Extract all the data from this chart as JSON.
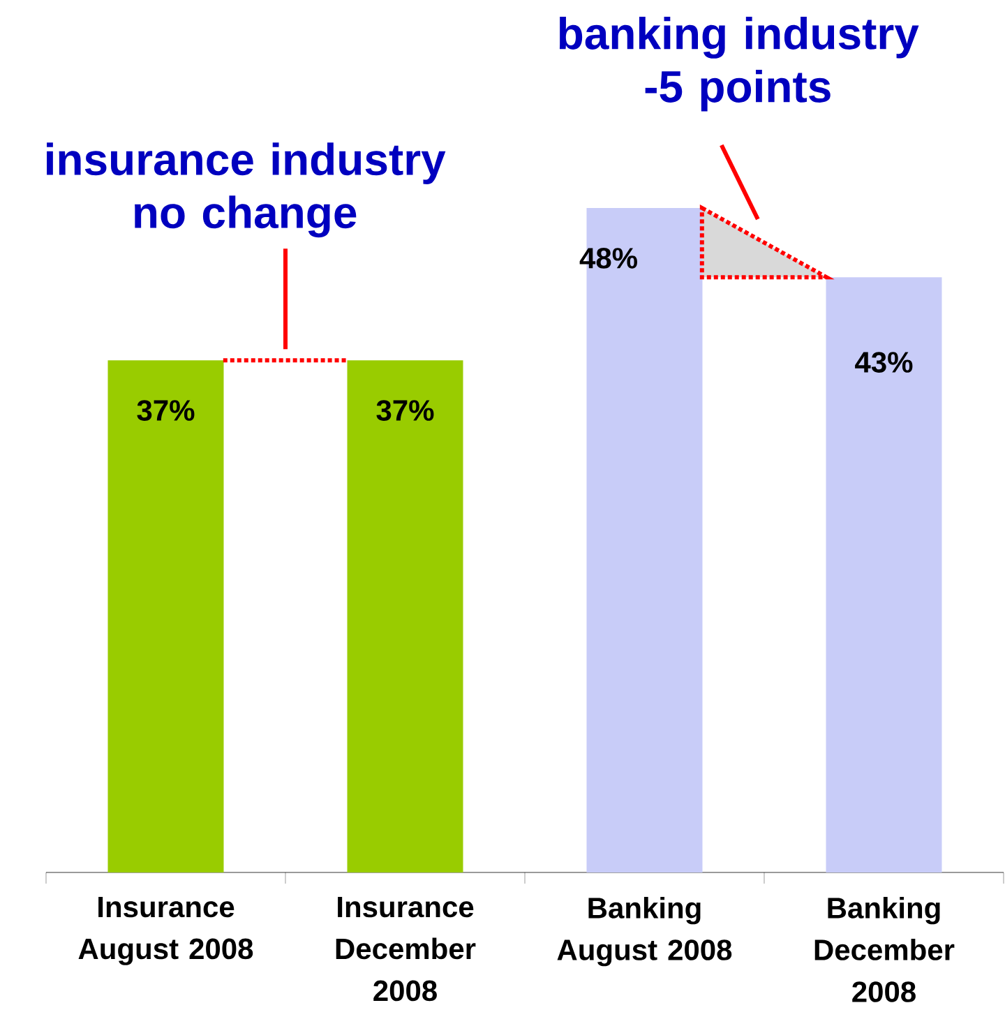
{
  "chart_data": {
    "type": "bar",
    "categories": [
      "Insurance August 2008",
      "Insurance December 2008",
      "Banking August 2008",
      "Banking December 2008"
    ],
    "values": [
      37,
      37,
      48,
      43
    ],
    "colors": [
      "#99cc00",
      "#99cc00",
      "#c8ccf8",
      "#c8ccf8"
    ],
    "value_labels": [
      "37%",
      "37%",
      "48%",
      "43%"
    ],
    "annotations": [
      "insurance industry no change",
      "banking industry -5 points"
    ]
  }
}
